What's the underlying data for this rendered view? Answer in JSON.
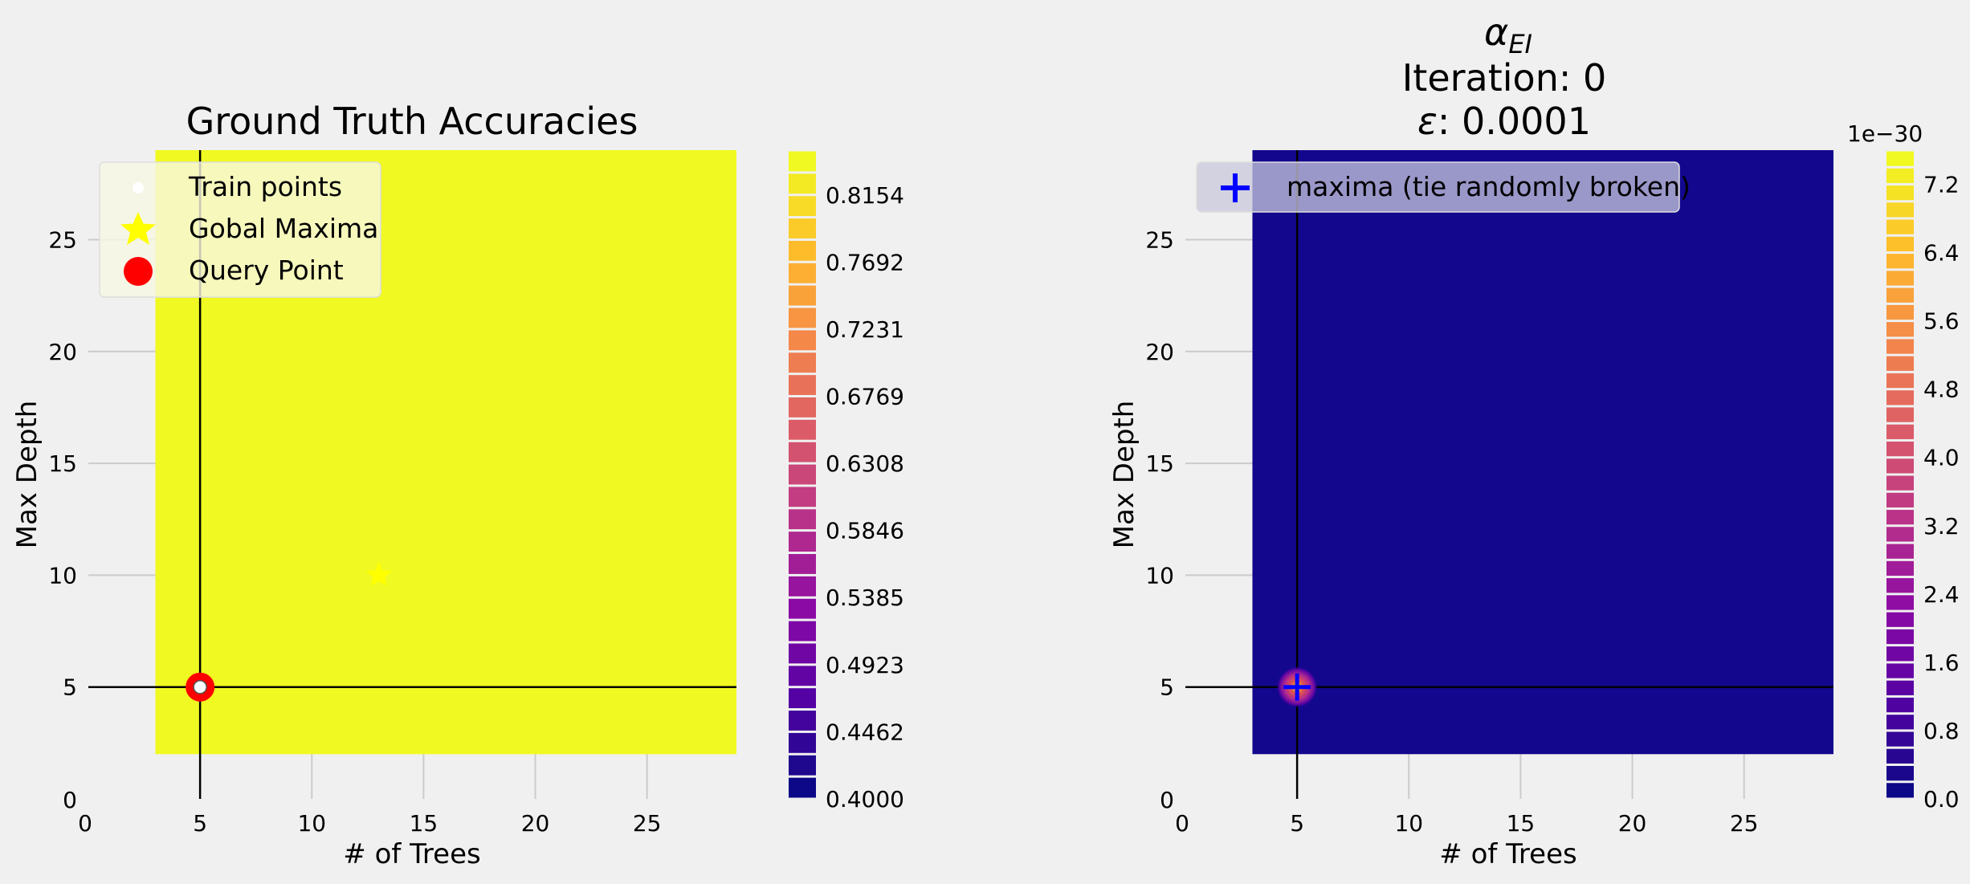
{
  "colors": {
    "background": "#f0f0f0",
    "left_field": "#f0f921",
    "right_field": "#13078e",
    "crosshair": "#000000",
    "query_point": "#ff0000",
    "global_maxima": "#ffff00",
    "maxima_marker": "#0000ff",
    "colormap": "plasma"
  },
  "chart_data": [
    {
      "type": "heatmap",
      "title": "Ground Truth Accuracies",
      "xlabel": "# of Trees",
      "ylabel": "Max Depth",
      "xlim": [
        0,
        29
      ],
      "ylim": [
        0,
        29
      ],
      "field_extent": {
        "x": [
          3,
          29
        ],
        "y": [
          2,
          29
        ]
      },
      "xticks": [
        5,
        10,
        15,
        20,
        25
      ],
      "yticks": [
        5,
        10,
        15,
        20,
        25
      ],
      "origin_label": "0",
      "crosshair": {
        "x": 5,
        "y": 5
      },
      "points": {
        "query_point": {
          "x": 5,
          "y": 5
        },
        "train_point": {
          "x": 5,
          "y": 5
        },
        "global_maxima": {
          "x": 13,
          "y": 10
        }
      },
      "legend": {
        "placement": "upper-left",
        "entries": [
          {
            "key": "train",
            "label": "Train points"
          },
          {
            "key": "maxima",
            "label": "Gobal Maxima"
          },
          {
            "key": "query",
            "label": "Query Point"
          }
        ]
      },
      "colorbar": {
        "min": 0.4,
        "max": 0.8462,
        "levels": 29,
        "ticks": [
          "0.4000",
          "0.4462",
          "0.4923",
          "0.5385",
          "0.5846",
          "0.6308",
          "0.6769",
          "0.7231",
          "0.7692",
          "0.8154"
        ],
        "offset_text": ""
      }
    },
    {
      "type": "heatmap",
      "title_lines": [
        "Iteration: 0"
      ],
      "title_alpha": {
        "symbol": "α",
        "sub": "EI"
      },
      "title_epsilon": {
        "symbol": "ε",
        "rest": ": 0.0001"
      },
      "xlabel": "# of Trees",
      "ylabel": "Max Depth",
      "xlim": [
        0,
        29
      ],
      "ylim": [
        0,
        29
      ],
      "field_extent": {
        "x": [
          3,
          29
        ],
        "y": [
          2,
          29
        ]
      },
      "xticks": [
        5,
        10,
        15,
        20,
        25
      ],
      "yticks": [
        5,
        10,
        15,
        20,
        25
      ],
      "origin_label": "0",
      "crosshair": {
        "x": 5,
        "y": 5
      },
      "points": {
        "maxima": {
          "x": 5,
          "y": 5
        }
      },
      "legend": {
        "placement": "upper-left",
        "entries": [
          {
            "key": "maxima_plus",
            "label": "maxima (tie randomly broken)"
          }
        ]
      },
      "colorbar": {
        "min": 0.0,
        "max": 7.6,
        "levels": 38,
        "ticks": [
          "0.0",
          "0.8",
          "1.6",
          "2.4",
          "3.2",
          "4.0",
          "4.8",
          "5.6",
          "6.4",
          "7.2"
        ],
        "offset_text": "1e−30"
      }
    }
  ]
}
